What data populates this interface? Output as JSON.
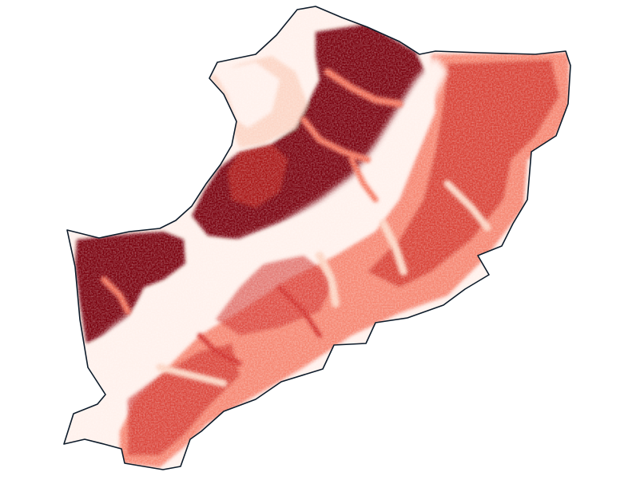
{
  "map": {
    "colors": {
      "background": "#ffffff",
      "outline": "#0d1b2a",
      "very_low": "#fff1ec",
      "low": "#fcd3c1",
      "medium": "#f4735c",
      "high": "#d02c26",
      "very_high": "#7a0009"
    },
    "texture": "speckled-raster"
  }
}
